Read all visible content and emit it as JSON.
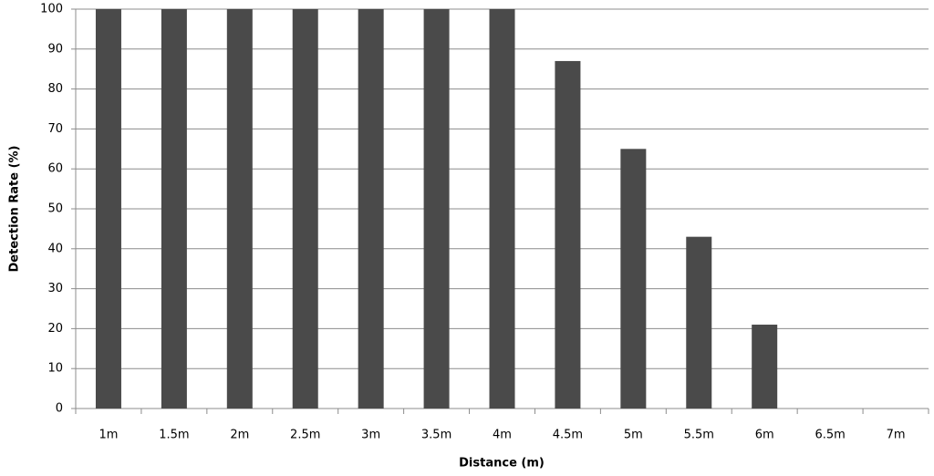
{
  "chart_data": {
    "type": "bar",
    "x_label": "Distance (m)",
    "y_label": "Detection Rate (%)",
    "categories": [
      "1m",
      "1.5m",
      "2m",
      "2.5m",
      "3m",
      "3.5m",
      "4m",
      "4.5m",
      "5m",
      "5.5m",
      "6m",
      "6.5m",
      "7m"
    ],
    "values": [
      100,
      100,
      100,
      100,
      100,
      100,
      100,
      87,
      65,
      43,
      21,
      0,
      0
    ],
    "color": "#4a4a4a",
    "ylim": [
      0,
      100
    ],
    "yticks": [
      0,
      10,
      20,
      30,
      40,
      50,
      60,
      70,
      80,
      90,
      100
    ],
    "grid": true
  }
}
